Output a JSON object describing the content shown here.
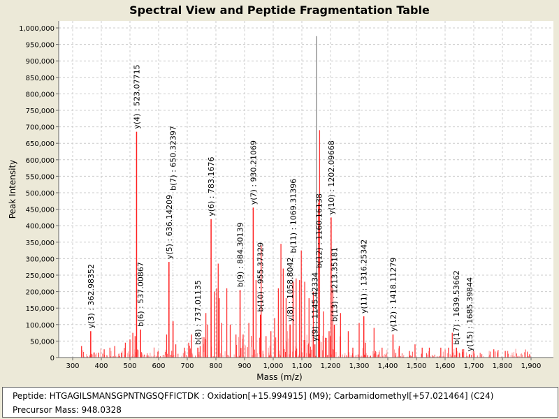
{
  "chart_data": {
    "type": "bar",
    "title": "Spectral View and Peptide Fragmentation Table",
    "xlabel": "Mass (m/z)",
    "ylabel": "Peak Intensity",
    "xlim": [
      275,
      1980
    ],
    "ylim": [
      0,
      1040000
    ],
    "xticks": [
      300,
      400,
      500,
      600,
      700,
      800,
      900,
      1000,
      1100,
      1200,
      1300,
      1400,
      1500,
      1600,
      1700,
      1800,
      1900
    ],
    "yticks": [
      0,
      50000,
      100000,
      150000,
      200000,
      250000,
      300000,
      350000,
      400000,
      450000,
      500000,
      550000,
      600000,
      650000,
      700000,
      750000,
      800000,
      850000,
      900000,
      950000,
      1000000
    ],
    "grid": true,
    "annotated_peaks": [
      {
        "label": "y(3) : 362.98352",
        "mz": 362.98,
        "intensity": 80000
      },
      {
        "label": "y(4) : 523.07715",
        "mz": 523.08,
        "intensity": 685000
      },
      {
        "label": "b(6) : 537.00867",
        "mz": 537.01,
        "intensity": 85000
      },
      {
        "label": "y(5) : 636.14209",
        "mz": 636.14,
        "intensity": 290000
      },
      {
        "label": "b(7) : 650.32397",
        "mz": 650.32,
        "intensity": 110000
      },
      {
        "label": "b(8) : 737.01135",
        "mz": 737.01,
        "intensity": 30000
      },
      {
        "label": "y(6) : 783.1676",
        "mz": 783.17,
        "intensity": 420000
      },
      {
        "label": "b(9) : 884.30139",
        "mz": 884.3,
        "intensity": 205000
      },
      {
        "label": "y(7) : 930.21069",
        "mz": 930.21,
        "intensity": 455000
      },
      {
        "label": "b(10) : 955.37329",
        "mz": 955.37,
        "intensity": 130000
      },
      {
        "label": "y(8) : 1058.8042",
        "mz": 1058.8,
        "intensity": 100000
      },
      {
        "label": "b(11) : 1069.31396",
        "mz": 1069.31,
        "intensity": 230000
      },
      {
        "label": "y(9) : 1145.42334",
        "mz": 1145.42,
        "intensity": 40000
      },
      {
        "label": "b(12) : 1160.16138",
        "mz": 1160.16,
        "intensity": 70000
      },
      {
        "label": "y(10) : 1202.09668",
        "mz": 1202.1,
        "intensity": 425000
      },
      {
        "label": "b(13) : 1213.35181",
        "mz": 1213.35,
        "intensity": 100000
      },
      {
        "label": "y(11) : 1316.25342",
        "mz": 1316.25,
        "intensity": 125000
      },
      {
        "label": "y(12) : 1418.11279",
        "mz": 1418.11,
        "intensity": 70000
      },
      {
        "label": "b(17) : 1639.53662",
        "mz": 1639.54,
        "intensity": 30000
      },
      {
        "label": "y(15) : 1685.39844",
        "mz": 1685.4,
        "intensity": 10000
      }
    ],
    "other_peaks": [
      [
        331,
        35000
      ],
      [
        390,
        15000
      ],
      [
        410,
        25000
      ],
      [
        430,
        30000
      ],
      [
        447,
        35000
      ],
      [
        470,
        15000
      ],
      [
        484,
        45000
      ],
      [
        500,
        55000
      ],
      [
        510,
        75000
      ],
      [
        518,
        65000
      ],
      [
        628,
        70000
      ],
      [
        660,
        40000
      ],
      [
        690,
        30000
      ],
      [
        705,
        45000
      ],
      [
        715,
        70000
      ],
      [
        745,
        35000
      ],
      [
        765,
        135000
      ],
      [
        771,
        100000
      ],
      [
        795,
        200000
      ],
      [
        803,
        210000
      ],
      [
        808,
        285000
      ],
      [
        812,
        180000
      ],
      [
        820,
        105000
      ],
      [
        838,
        210000
      ],
      [
        850,
        100000
      ],
      [
        870,
        70000
      ],
      [
        895,
        70000
      ],
      [
        915,
        105000
      ],
      [
        940,
        235000
      ],
      [
        958,
        340000
      ],
      [
        975,
        65000
      ],
      [
        992,
        80000
      ],
      [
        1005,
        120000
      ],
      [
        1018,
        210000
      ],
      [
        1027,
        345000
      ],
      [
        1035,
        270000
      ],
      [
        1045,
        180000
      ],
      [
        1080,
        240000
      ],
      [
        1092,
        235000
      ],
      [
        1098,
        325000
      ],
      [
        1110,
        230000
      ],
      [
        1125,
        180000
      ],
      [
        1140,
        200000
      ],
      [
        1151,
        975000
      ],
      [
        1158,
        470000
      ],
      [
        1162,
        690000
      ],
      [
        1175,
        140000
      ],
      [
        1182,
        60000
      ],
      [
        1195,
        80000
      ],
      [
        1208,
        210000
      ],
      [
        1235,
        135000
      ],
      [
        1262,
        80000
      ],
      [
        1278,
        30000
      ],
      [
        1300,
        105000
      ],
      [
        1322,
        45000
      ],
      [
        1352,
        90000
      ],
      [
        1380,
        30000
      ],
      [
        1440,
        35000
      ],
      [
        1475,
        20000
      ],
      [
        1495,
        40000
      ],
      [
        1520,
        30000
      ],
      [
        1545,
        30000
      ],
      [
        1585,
        30000
      ],
      [
        1612,
        30000
      ],
      [
        1625,
        75000
      ],
      [
        1660,
        25000
      ],
      [
        1700,
        20000
      ],
      [
        1770,
        25000
      ],
      [
        1810,
        20000
      ],
      [
        1895,
        10000
      ]
    ]
  },
  "info": {
    "peptide": "Peptide: HTGAGILSMANSGPNTNGSQFFICTDK : Oxidation[+15.994915] (M9); Carbamidomethyl[+57.021464] (C24)",
    "precursor": "Precursor Mass: 948.0328"
  }
}
